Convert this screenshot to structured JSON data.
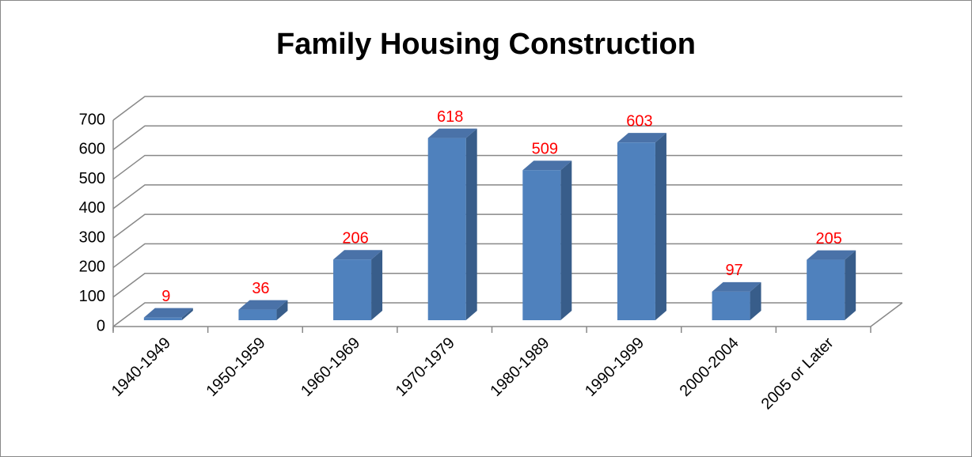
{
  "chart_data": {
    "type": "bar",
    "title": "Family Housing Construction",
    "categories": [
      "1940-1949",
      "1950-1959",
      "1960-1969",
      "1970-1979",
      "1980-1989",
      "1990-1999",
      "2000-2004",
      "2005 or Later"
    ],
    "values": [
      9,
      36,
      206,
      618,
      509,
      603,
      97,
      205
    ],
    "color": "#4f81bd",
    "label_color": "#ff0000",
    "ylim": [
      0,
      700
    ],
    "yticks": [
      0,
      100,
      200,
      300,
      400,
      500,
      600,
      700
    ],
    "grid": true
  }
}
